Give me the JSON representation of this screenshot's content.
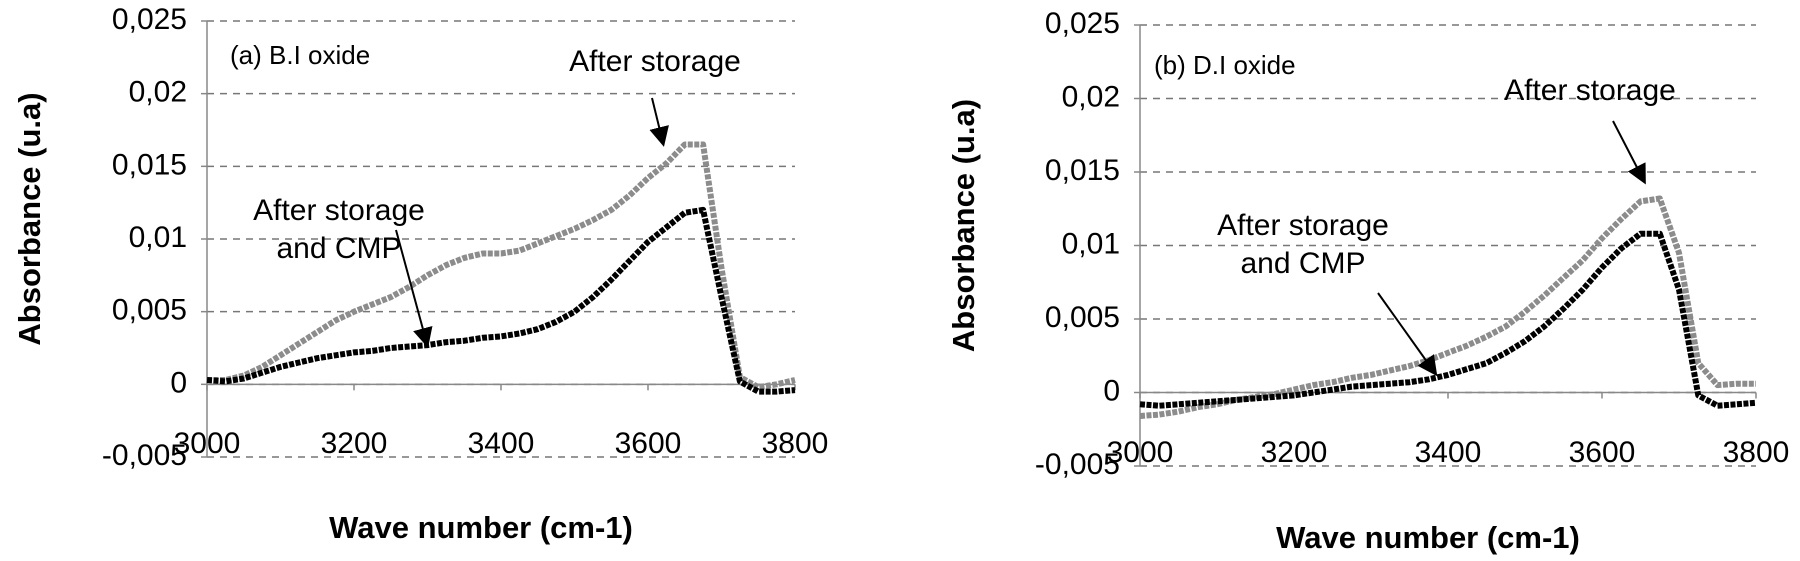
{
  "chart_data": [
    {
      "type": "line",
      "label": "(a) B.I oxide",
      "x_label": "Wave number (cm-1)",
      "y_label": "Absorbance (u.a)",
      "annotations": [
        [
          "After storage"
        ],
        [
          "After storage",
          "and CMP"
        ]
      ],
      "x": [
        3000,
        3025,
        3050,
        3075,
        3100,
        3125,
        3150,
        3175,
        3200,
        3225,
        3250,
        3275,
        3300,
        3325,
        3350,
        3375,
        3400,
        3425,
        3450,
        3475,
        3500,
        3525,
        3550,
        3575,
        3600,
        3625,
        3650,
        3675,
        3700,
        3725,
        3750,
        3775,
        3800
      ],
      "series": [
        {
          "color": "#8c8c8c",
          "values": [
            0.0003,
            0.0003,
            0.0006,
            0.0012,
            0.002,
            0.0028,
            0.0036,
            0.0044,
            0.005,
            0.0055,
            0.006,
            0.0067,
            0.0075,
            0.0082,
            0.0087,
            0.009,
            0.009,
            0.0092,
            0.0097,
            0.0102,
            0.0107,
            0.0113,
            0.012,
            0.013,
            0.0142,
            0.0152,
            0.0165,
            0.0165,
            0.008,
            0.0005,
            -0.0002,
            0,
            0.0003
          ]
        },
        {
          "color": "#000000",
          "values": [
            0.0003,
            0.0002,
            0.0004,
            0.0008,
            0.0012,
            0.0015,
            0.0018,
            0.002,
            0.0022,
            0.0023,
            0.0025,
            0.0026,
            0.0027,
            0.0029,
            0.003,
            0.0032,
            0.0033,
            0.0035,
            0.0038,
            0.0043,
            0.005,
            0.006,
            0.0072,
            0.0085,
            0.0098,
            0.0108,
            0.0118,
            0.012,
            0.006,
            0.0002,
            -0.0005,
            -0.0005,
            -0.0004
          ]
        }
      ],
      "xlim": [
        3000,
        3800
      ],
      "xticks": [
        3000,
        3200,
        3400,
        3600,
        3800
      ],
      "ylim": [
        -0.005,
        0.025
      ],
      "yticks": [
        {
          "value": -0.005,
          "label": "-0,005"
        },
        0,
        {
          "value": 0.005,
          "label": "0,005"
        },
        {
          "value": 0.01,
          "label": "0,01"
        },
        {
          "value": 0.015,
          "label": "0,015"
        },
        {
          "value": 0.02,
          "label": "0,02"
        },
        {
          "value": 0.025,
          "label": "0,025"
        }
      ],
      "grid": true
    },
    {
      "type": "line",
      "label": "(b) D.I oxide",
      "x_label": "Wave number (cm-1)",
      "y_label": "Absorbance (u.a)",
      "annotations": [
        [
          "After storage"
        ],
        [
          "After storage",
          "and CMP"
        ]
      ],
      "x": [
        3000,
        3025,
        3050,
        3075,
        3100,
        3125,
        3150,
        3175,
        3200,
        3225,
        3250,
        3275,
        3300,
        3325,
        3350,
        3375,
        3400,
        3425,
        3450,
        3475,
        3500,
        3525,
        3550,
        3575,
        3600,
        3625,
        3650,
        3675,
        3700,
        3725,
        3750,
        3775,
        3800
      ],
      "series": [
        {
          "color": "#8c8c8c",
          "values": [
            -0.0016,
            -0.0015,
            -0.0013,
            -0.001,
            -0.0008,
            -0.0005,
            -0.0003,
            -0.0001,
            0.0002,
            0.0005,
            0.0007,
            0.001,
            0.0012,
            0.0015,
            0.0018,
            0.0022,
            0.0027,
            0.0032,
            0.0038,
            0.0045,
            0.0055,
            0.0066,
            0.0078,
            0.009,
            0.0105,
            0.0118,
            0.013,
            0.0132,
            0.0095,
            0.002,
            0.0005,
            0.0006,
            0.0006
          ]
        },
        {
          "color": "#000000",
          "values": [
            -0.0008,
            -0.0009,
            -0.0008,
            -0.0007,
            -0.0006,
            -0.0005,
            -0.0004,
            -0.0003,
            -0.0002,
            0,
            0.0002,
            0.0004,
            0.0005,
            0.0006,
            0.0007,
            0.0009,
            0.0012,
            0.0016,
            0.002,
            0.0027,
            0.0035,
            0.0045,
            0.0057,
            0.007,
            0.0085,
            0.0098,
            0.0108,
            0.0108,
            0.007,
            -0.0002,
            -0.0009,
            -0.0008,
            -0.0007
          ]
        }
      ],
      "xlim": [
        3000,
        3800
      ],
      "xticks": [
        3000,
        3200,
        3400,
        3600,
        3800
      ],
      "ylim": [
        -0.005,
        0.025
      ],
      "yticks": [
        {
          "value": -0.005,
          "label": "-0,005"
        },
        0,
        {
          "value": 0.005,
          "label": "0,005"
        },
        {
          "value": 0.01,
          "label": "0,01"
        },
        {
          "value": 0.015,
          "label": "0,015"
        },
        {
          "value": 0.02,
          "label": "0,02"
        },
        {
          "value": 0.025,
          "label": "0,025"
        }
      ],
      "grid": true
    }
  ]
}
